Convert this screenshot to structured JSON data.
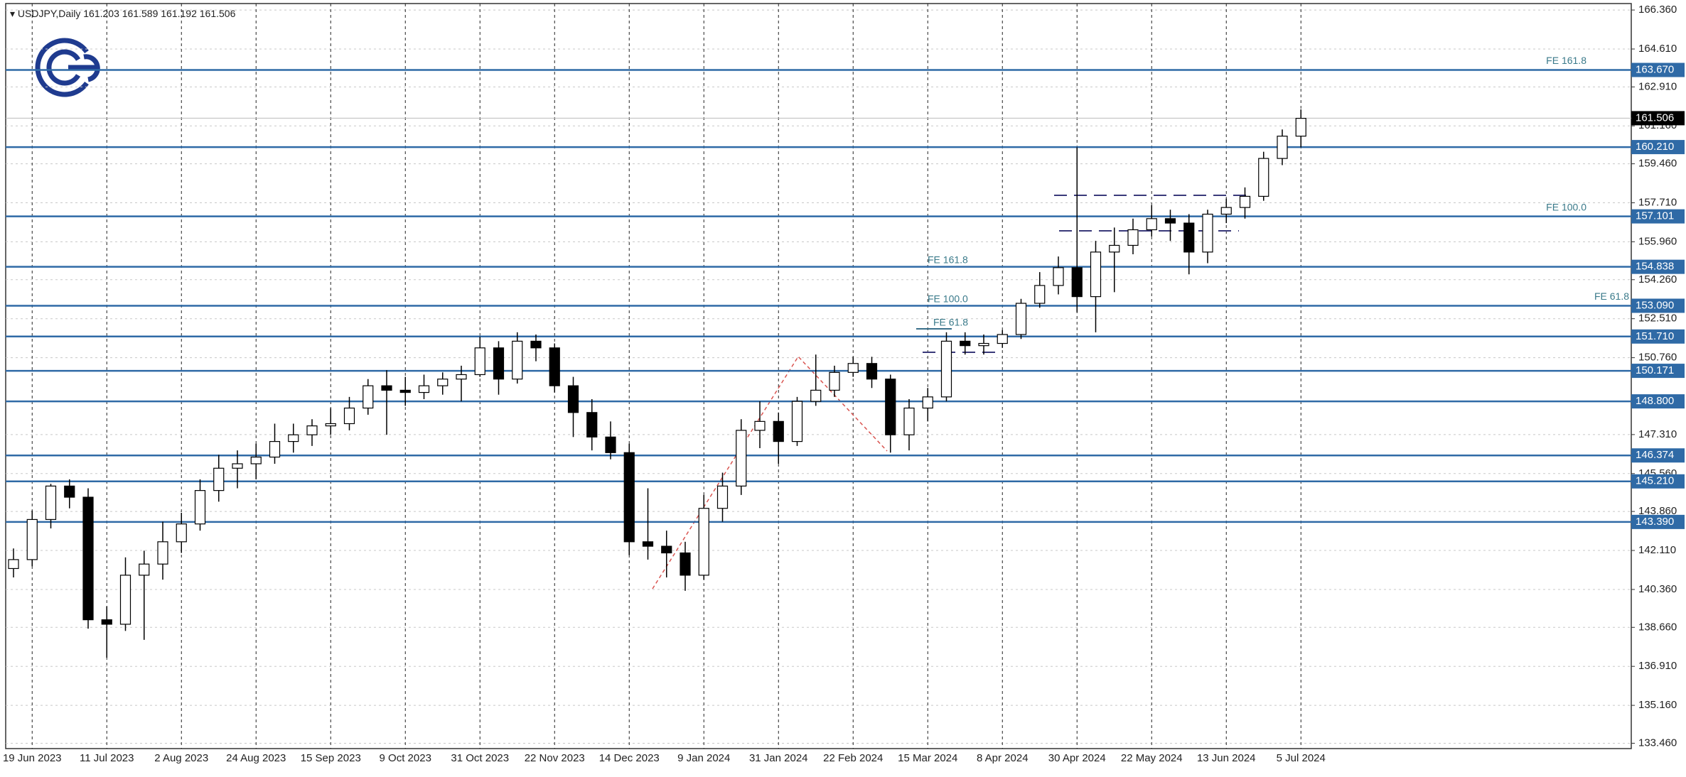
{
  "chart_data": {
    "type": "candlestick",
    "header": {
      "symbol": "USDJPY,Daily",
      "open": 161.203,
      "high": 161.589,
      "low": 161.192,
      "close": 161.506
    },
    "current_price": 161.506,
    "up_color": "#ffffff",
    "down_color": "#000000",
    "level_color": "#2f6aa6",
    "categories": [
      null,
      "19 Jun 2023",
      null,
      null,
      null,
      "11 Jul 2023",
      null,
      null,
      null,
      "2 Aug 2023",
      null,
      null,
      null,
      "24 Aug 2023",
      null,
      null,
      null,
      "15 Sep 2023",
      null,
      null,
      null,
      "9 Oct 2023",
      null,
      null,
      null,
      "31 Oct 2023",
      null,
      null,
      null,
      "22 Nov 2023",
      null,
      null,
      null,
      "14 Dec 2023",
      null,
      null,
      null,
      "9 Jan 2024",
      null,
      null,
      null,
      "31 Jan 2024",
      null,
      null,
      null,
      "22 Feb 2024",
      null,
      null,
      null,
      "15 Mar 2024",
      null,
      null,
      null,
      "8 Apr 2024",
      null,
      null,
      null,
      "30 Apr 2024",
      null,
      null,
      null,
      "22 May 2024",
      null,
      null,
      null,
      "13 Jun 2024",
      null,
      null,
      null,
      "5 Jul 2024"
    ],
    "ohlc": [
      [
        141.3,
        142.2,
        140.9,
        141.7
      ],
      [
        141.7,
        143.9,
        141.4,
        143.5
      ],
      [
        143.5,
        145.1,
        143.1,
        145.0
      ],
      [
        145.0,
        145.3,
        144.0,
        144.5
      ],
      [
        144.5,
        144.9,
        138.6,
        139.0
      ],
      [
        139.0,
        139.6,
        137.3,
        138.8
      ],
      [
        138.8,
        141.8,
        138.5,
        141.0
      ],
      [
        141.0,
        142.1,
        138.1,
        141.5
      ],
      [
        141.5,
        143.4,
        140.8,
        142.5
      ],
      [
        142.5,
        143.8,
        142.0,
        143.3
      ],
      [
        143.3,
        145.3,
        143.0,
        144.8
      ],
      [
        144.8,
        146.4,
        144.3,
        145.8
      ],
      [
        145.8,
        146.6,
        144.9,
        146.0
      ],
      [
        146.0,
        146.9,
        145.3,
        146.3
      ],
      [
        146.3,
        147.8,
        146.0,
        147.0
      ],
      [
        147.0,
        147.8,
        146.5,
        147.3
      ],
      [
        147.3,
        148.0,
        146.8,
        147.7
      ],
      [
        147.7,
        148.5,
        147.3,
        147.8
      ],
      [
        147.8,
        149.0,
        147.5,
        148.5
      ],
      [
        148.5,
        149.8,
        148.2,
        149.5
      ],
      [
        149.5,
        150.2,
        147.3,
        149.3
      ],
      [
        149.3,
        149.9,
        148.6,
        149.2
      ],
      [
        149.2,
        150.0,
        148.9,
        149.5
      ],
      [
        149.5,
        150.1,
        149.1,
        149.8
      ],
      [
        149.8,
        150.4,
        148.8,
        150.0
      ],
      [
        150.0,
        151.7,
        149.9,
        151.2
      ],
      [
        151.2,
        151.5,
        149.1,
        149.8
      ],
      [
        149.8,
        151.9,
        149.6,
        151.5
      ],
      [
        151.5,
        151.8,
        150.6,
        151.2
      ],
      [
        151.2,
        151.4,
        149.2,
        149.5
      ],
      [
        149.5,
        149.9,
        147.2,
        148.3
      ],
      [
        148.3,
        148.9,
        146.6,
        147.2
      ],
      [
        147.2,
        147.9,
        146.2,
        146.5
      ],
      [
        146.5,
        146.9,
        141.9,
        142.5
      ],
      [
        142.5,
        144.9,
        141.7,
        142.3
      ],
      [
        142.3,
        143.0,
        140.9,
        142.0
      ],
      [
        142.0,
        142.5,
        140.3,
        141.0
      ],
      [
        141.0,
        144.6,
        140.8,
        144.0
      ],
      [
        144.0,
        145.6,
        143.4,
        145.0
      ],
      [
        145.0,
        148.0,
        144.6,
        147.5
      ],
      [
        147.5,
        148.8,
        146.7,
        147.9
      ],
      [
        147.9,
        148.3,
        146.0,
        147.0
      ],
      [
        147.0,
        149.0,
        146.8,
        148.8
      ],
      [
        148.8,
        150.9,
        148.6,
        149.3
      ],
      [
        149.3,
        150.4,
        149.0,
        150.1
      ],
      [
        150.1,
        150.8,
        149.9,
        150.5
      ],
      [
        150.5,
        150.8,
        149.4,
        149.8
      ],
      [
        149.8,
        150.0,
        146.5,
        147.3
      ],
      [
        147.3,
        148.9,
        146.6,
        148.5
      ],
      [
        148.5,
        149.4,
        147.9,
        149.0
      ],
      [
        149.0,
        151.9,
        148.8,
        151.5
      ],
      [
        151.5,
        151.9,
        150.9,
        151.3
      ],
      [
        151.3,
        151.8,
        150.9,
        151.4
      ],
      [
        151.4,
        152.0,
        151.2,
        151.8
      ],
      [
        151.8,
        153.4,
        151.6,
        153.2
      ],
      [
        153.2,
        154.6,
        153.0,
        154.0
      ],
      [
        154.0,
        155.3,
        153.6,
        154.8
      ],
      [
        154.8,
        160.2,
        152.8,
        153.5
      ],
      [
        153.5,
        156.0,
        151.9,
        155.5
      ],
      [
        155.5,
        156.6,
        153.7,
        155.8
      ],
      [
        155.8,
        157.0,
        155.4,
        156.5
      ],
      [
        156.5,
        157.6,
        156.2,
        157.0
      ],
      [
        157.0,
        157.4,
        156.0,
        156.8
      ],
      [
        156.8,
        157.2,
        154.5,
        155.5
      ],
      [
        155.5,
        157.4,
        155.0,
        157.2
      ],
      [
        157.2,
        157.9,
        156.8,
        157.5
      ],
      [
        157.5,
        158.4,
        157.0,
        158.0
      ],
      [
        158.0,
        160.0,
        157.8,
        159.7
      ],
      [
        159.7,
        161.0,
        159.4,
        160.7
      ],
      [
        160.7,
        161.9,
        160.2,
        161.5
      ]
    ],
    "ylim": [
      133.22,
      166.65
    ],
    "yticks": [
      {
        "value": 166.36,
        "label": "166.360"
      },
      {
        "value": 164.61,
        "label": "164.610"
      },
      {
        "value": 162.91,
        "label": "162.910"
      },
      {
        "value": 161.16,
        "label": "161.160"
      },
      {
        "value": 159.46,
        "label": "159.460"
      },
      {
        "value": 157.71,
        "label": "157.710"
      },
      {
        "value": 155.96,
        "label": "155.960"
      },
      {
        "value": 154.26,
        "label": "154.260"
      },
      {
        "value": 152.51,
        "label": "152.510"
      },
      {
        "value": 150.76,
        "label": "150.760"
      },
      {
        "value": 147.31,
        "label": "147.310"
      },
      {
        "value": 145.56,
        "label": "145.560"
      },
      {
        "value": 143.86,
        "label": "143.860"
      },
      {
        "value": 142.11,
        "label": "142.110"
      },
      {
        "value": 140.36,
        "label": "140.360"
      },
      {
        "value": 138.66,
        "label": "138.660"
      },
      {
        "value": 136.91,
        "label": "136.910"
      },
      {
        "value": 135.16,
        "label": "135.160"
      },
      {
        "value": 133.46,
        "label": "133.460"
      }
    ],
    "levels": [
      {
        "value": 163.67,
        "label": "163.670"
      },
      {
        "value": 160.21,
        "label": "160.210"
      },
      157.101,
      {
        "value": 154.838,
        "label": "154.838"
      },
      {
        "value": 153.09,
        "label": "153.090"
      },
      {
        "value": 151.71,
        "label": "151.710"
      },
      150.171,
      {
        "value": 148.8,
        "label": "148.800"
      },
      146.374,
      {
        "value": 145.21,
        "label": "145.210"
      },
      {
        "value": 143.39,
        "label": "143.390"
      }
    ],
    "annotations": [
      "FE 161.8",
      "FE 100.0",
      "FE 61.8",
      "FE 161.8",
      "FE 100.0",
      "FE 61.8"
    ]
  }
}
